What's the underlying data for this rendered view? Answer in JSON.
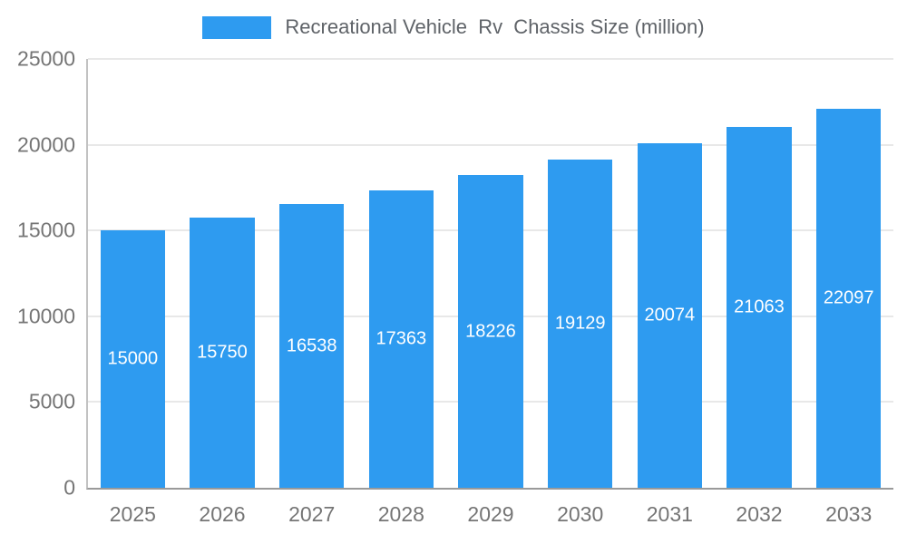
{
  "legend": {
    "label": "Recreational Vehicle  Rv  Chassis Size (million)"
  },
  "chart_data": {
    "type": "bar",
    "title": "Recreational Vehicle  Rv  Chassis Size (million)",
    "categories": [
      "2025",
      "2026",
      "2027",
      "2028",
      "2029",
      "2030",
      "2031",
      "2032",
      "2033"
    ],
    "values": [
      15000,
      15750,
      16538,
      17363,
      18226,
      19129,
      20074,
      21063,
      22097
    ],
    "xlabel": "",
    "ylabel": "",
    "ylim": [
      0,
      25000
    ],
    "yticks": [
      0,
      5000,
      10000,
      15000,
      20000,
      25000
    ],
    "grid": true,
    "legend_position": "top",
    "bar_color": "#2E9BF0",
    "bar_label_color": "#ffffff",
    "axis_text_color": "#757575",
    "gridline_color": "#e8e8e8",
    "background_color": "#ffffff"
  }
}
